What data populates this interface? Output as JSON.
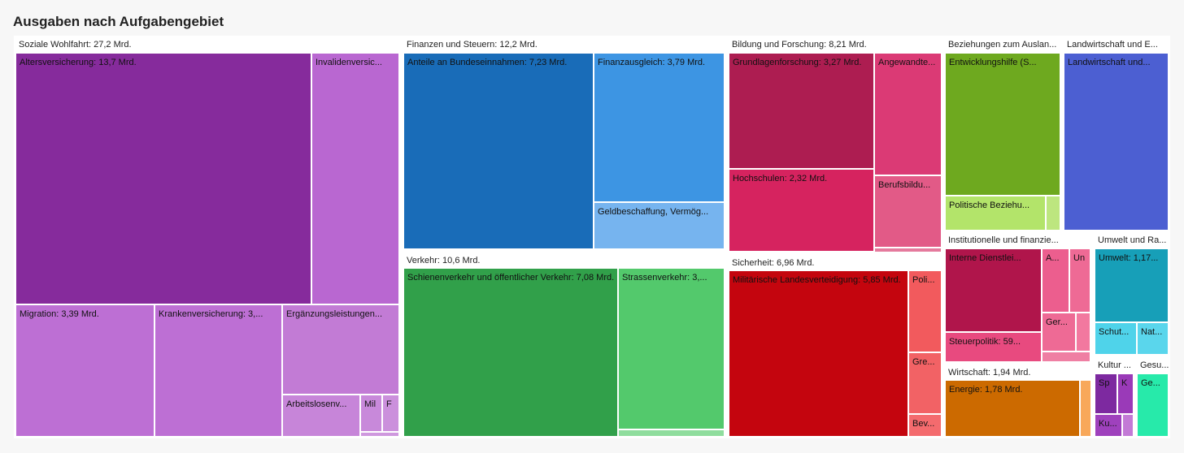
{
  "title": "Ausgaben nach Aufgabengebiet",
  "chart_data": {
    "type": "treemap",
    "title": "Ausgaben nach Aufgabengebiet",
    "groups": [
      {
        "label": "Soziale Wohlfahrt: 27,2 Mrd.",
        "color": "#8e2e9e",
        "tiles": [
          {
            "label": "Altersversicherung: 13,7 Mrd.",
            "color": "#862b9c",
            "dark": true
          },
          {
            "label": "Invalidenversic...",
            "color": "#b967d1"
          },
          {
            "label": "Migration: 3,39 Mrd.",
            "color": "#bd6fd4"
          },
          {
            "label": "Krankenversicherung: 3,...",
            "color": "#bd6fd4"
          },
          {
            "label": "Ergänzungsleistungen...",
            "color": "#c27bd5"
          },
          {
            "label": "Arbeitslosenv...",
            "color": "#c785d9"
          },
          {
            "label": "Mil",
            "color": "#c889da"
          },
          {
            "label": "F",
            "color": "#cb90dc"
          },
          {
            "label": "",
            "color": "#cf98de"
          }
        ]
      },
      {
        "label": "Finanzen und Steuern: 12,2 Mrd.",
        "color": "#1f6fbf",
        "tiles": [
          {
            "label": "Anteile an Bundeseinnahmen: 7,23 Mrd.",
            "color": "#196cb8"
          },
          {
            "label": "Finanzausgleich: 3,79 Mrd.",
            "color": "#3d95e3"
          },
          {
            "label": "Geldbeschaffung, Vermög...",
            "color": "#76b4ef"
          }
        ]
      },
      {
        "label": "Verkehr: 10,6 Mrd.",
        "color": "#2e9e4a",
        "tiles": [
          {
            "label": "Schienenverkehr und öffentlicher Verkehr: 7,08 Mrd.",
            "color": "#31a04a"
          },
          {
            "label": "Strassenverkehr: 3,...",
            "color": "#53c96c"
          },
          {
            "label": "",
            "color": "#8fdd9d"
          }
        ]
      },
      {
        "label": "Bildung und Forschung: 8,21 Mrd.",
        "color": "#b01c52",
        "tiles": [
          {
            "label": "Grundlagenforschung: 3,27 Mrd.",
            "color": "#ad1d51"
          },
          {
            "label": "Angewandte...",
            "color": "#db3a75"
          },
          {
            "label": "Hochschulen: 2,32 Mrd.",
            "color": "#d6235f"
          },
          {
            "label": "Berufsbildu...",
            "color": "#e25a87"
          },
          {
            "label": "",
            "color": "#e57a9d"
          }
        ]
      },
      {
        "label": "Sicherheit: 6,96 Mrd.",
        "color": "#c40510",
        "tiles": [
          {
            "label": "Militärische Landesverteidigung: 5,85 Mrd.",
            "color": "#c4050e"
          },
          {
            "label": "Poli...",
            "color": "#f25a5d"
          },
          {
            "label": "Gre...",
            "color": "#f26265"
          },
          {
            "label": "Bev...",
            "color": "#f46b6e"
          }
        ]
      },
      {
        "label": "Beziehungen zum Auslan...",
        "color": "#6fac1f",
        "tiles": [
          {
            "label": "Entwicklungshilfe (S...",
            "color": "#6ea91f"
          },
          {
            "label": "Politische Beziehu...",
            "color": "#b3e46a"
          },
          {
            "label": "",
            "color": "#bde67f"
          }
        ]
      },
      {
        "label": "Landwirtschaft und E...",
        "color": "#4e5fcf",
        "tiles": [
          {
            "label": "Landwirtschaft und...",
            "color": "#4c5fd2"
          }
        ]
      },
      {
        "label": "Institutionelle und finanzie...",
        "color": "#b0154a",
        "tiles": [
          {
            "label": "Interne Dienstlei...",
            "color": "#b0154b"
          },
          {
            "label": "A...",
            "color": "#ec5e8e"
          },
          {
            "label": "Un",
            "color": "#ee6a95"
          },
          {
            "label": "Ger...",
            "color": "#ee6a95"
          },
          {
            "label": "",
            "color": "#f2789f"
          },
          {
            "label": "Steuerpolitik: 59...",
            "color": "#e84a7f"
          },
          {
            "label": "",
            "color": "#ef7fa3"
          }
        ]
      },
      {
        "label": "Umwelt und Ra...",
        "color": "#14a2b8",
        "tiles": [
          {
            "label": "Umwelt: 1,17...",
            "color": "#179fb8"
          },
          {
            "label": "Schut...",
            "color": "#4fd3ea"
          },
          {
            "label": "Nat...",
            "color": "#5ad6ec"
          }
        ]
      },
      {
        "label": "Wirtschaft: 1,94 Mrd.",
        "color": "#cc6a00",
        "tiles": [
          {
            "label": "Energie: 1,78 Mrd.",
            "color": "#cc6a00"
          },
          {
            "label": "",
            "color": "#f8a85a"
          }
        ]
      },
      {
        "label": "Kultur ...",
        "color": "#7e2aa0",
        "tiles": [
          {
            "label": "Sp",
            "color": "#7d29a0"
          },
          {
            "label": "K",
            "color": "#9a3ab8"
          },
          {
            "label": "Ku...",
            "color": "#9f41bd"
          },
          {
            "label": "",
            "color": "#c37ad6"
          }
        ]
      },
      {
        "label": "Gesu...",
        "color": "#22e8a8",
        "tiles": [
          {
            "label": "Ge...",
            "color": "#27eaaa"
          }
        ]
      }
    ]
  }
}
